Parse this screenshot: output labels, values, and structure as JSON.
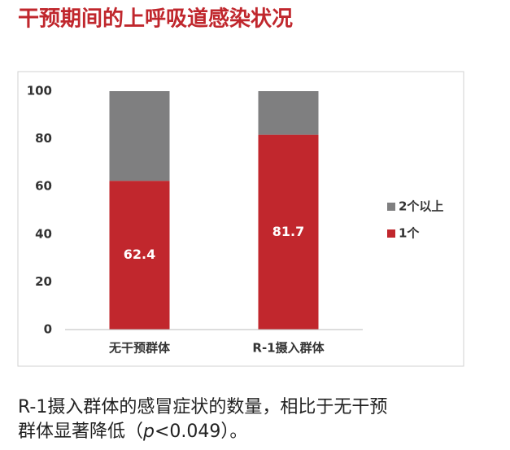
{
  "chart_data": {
    "type": "stacked_bar",
    "title": "干预期间的上呼吸道感染状况",
    "categories": [
      "无干预群体",
      "R-1摄入群体"
    ],
    "series": [
      {
        "name": "1个",
        "color": "#c1272d",
        "values": [
          62.4,
          81.7
        ]
      },
      {
        "name": "2个以上",
        "color": "#7f7f80",
        "values": [
          37.6,
          18.3
        ]
      }
    ],
    "ylim": [
      0,
      100
    ],
    "yticks": [
      0,
      20,
      40,
      60,
      80,
      100
    ],
    "grid": false,
    "legend": "right",
    "data_labels_series": 0
  },
  "caption": {
    "line1": "R-1摄入群体的感冒症状的数量，相比于无干预",
    "line2_before": "群体显著降低（",
    "line2_italic": "p",
    "line2_after": "<0.049）。"
  }
}
